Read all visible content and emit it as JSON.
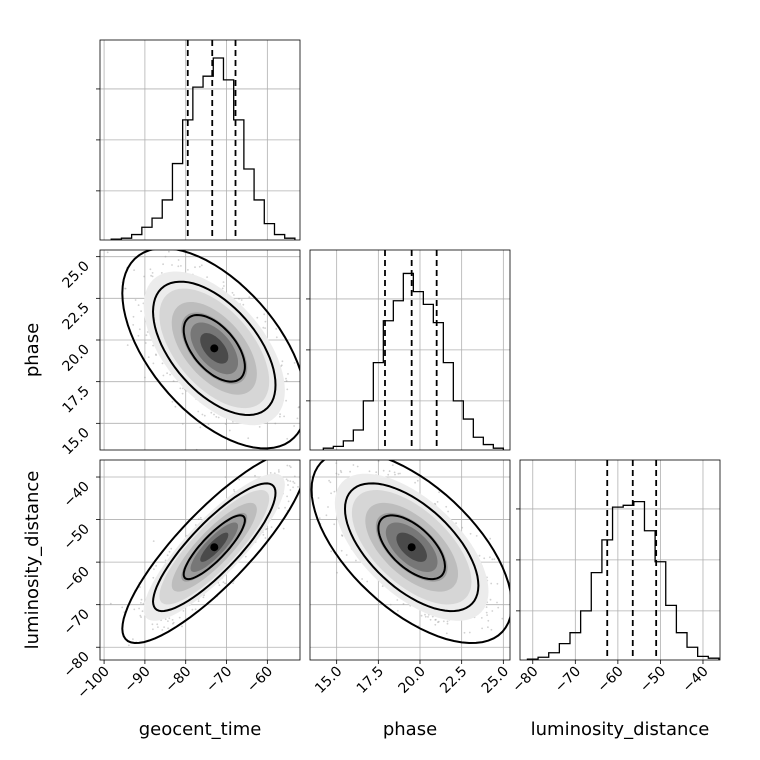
{
  "chart_data": {
    "type": "corner",
    "parameters": [
      "geocent_time",
      "phase",
      "luminosity_distance"
    ],
    "axis_labels": {
      "geocent_time": "geocent_time",
      "phase": "phase",
      "luminosity_distance": "luminosity_distance"
    },
    "ranges": {
      "geocent_time": [
        -101,
        -52
      ],
      "phase": [
        13.4,
        25.4
      ],
      "luminosity_distance": [
        -83,
        -36
      ]
    },
    "ticks": {
      "geocent_time": [
        -100,
        -90,
        -80,
        -70,
        -60
      ],
      "phase": [
        15.0,
        17.5,
        20.0,
        22.5,
        25.0
      ],
      "luminosity_distance": [
        -80,
        -70,
        -60,
        -50,
        -40
      ]
    },
    "tick_labels": {
      "geocent_time": [
        "−100",
        "−90",
        "−80",
        "−70",
        "−60"
      ],
      "phase": [
        "15.0",
        "17.5",
        "20.0",
        "22.5",
        "25.0"
      ],
      "luminosity_distance": [
        "−80",
        "−70",
        "−60",
        "−50",
        "−40"
      ]
    },
    "quantiles": {
      "geocent_time": [
        -79.5,
        -73.5,
        -67.8
      ],
      "phase": [
        17.9,
        19.5,
        21.0
      ],
      "luminosity_distance": [
        -62.5,
        -56.5,
        -51
      ]
    },
    "histograms": {
      "geocent_time": {
        "bins": [
          -97,
          -94.5,
          -92,
          -89.5,
          -87,
          -84.5,
          -82,
          -79.5,
          -77,
          -74.5,
          -72,
          -69.5,
          -67,
          -64.5,
          -62,
          -59.5,
          -57,
          -54.5
        ],
        "counts": [
          0.005,
          0.01,
          0.03,
          0.07,
          0.12,
          0.22,
          0.42,
          0.66,
          0.84,
          0.9,
          1.0,
          0.88,
          0.66,
          0.39,
          0.22,
          0.09,
          0.03,
          0.01
        ]
      },
      "phase": {
        "bins": [
          14.5,
          15.1,
          15.7,
          16.3,
          16.9,
          17.5,
          18.1,
          18.7,
          19.3,
          19.9,
          20.5,
          21.1,
          21.7,
          22.3,
          22.9,
          23.5,
          24.1,
          24.7
        ],
        "counts": [
          0.01,
          0.02,
          0.05,
          0.11,
          0.27,
          0.48,
          0.71,
          0.82,
          0.97,
          0.87,
          0.8,
          0.7,
          0.48,
          0.27,
          0.17,
          0.07,
          0.03,
          0.01
        ]
      },
      "luminosity_distance": {
        "bins": [
          -80,
          -77.5,
          -75,
          -72.5,
          -70,
          -67.5,
          -65,
          -62.5,
          -60,
          -57.5,
          -55,
          -52.5,
          -50,
          -47.5,
          -45,
          -42.5,
          -40,
          -37.5
        ],
        "counts": [
          0.005,
          0.015,
          0.04,
          0.09,
          0.15,
          0.27,
          0.48,
          0.66,
          0.84,
          0.85,
          0.87,
          0.71,
          0.54,
          0.3,
          0.15,
          0.07,
          0.02,
          0.01
        ]
      }
    },
    "joint": [
      {
        "x": "geocent_time",
        "y": "phase",
        "mean": [
          -73,
          19.5
        ],
        "sd": [
          7.5,
          2.0
        ],
        "rho": -0.55,
        "contours": [
          0.393,
          0.865,
          0.989
        ]
      },
      {
        "x": "geocent_time",
        "y": "luminosity_distance",
        "mean": [
          -73,
          -56.5
        ],
        "sd": [
          7.5,
          7.5
        ],
        "rho": 0.85,
        "contours": [
          0.393,
          0.865,
          0.989
        ]
      },
      {
        "x": "phase",
        "y": "luminosity_distance",
        "mean": [
          19.5,
          -56.5
        ],
        "sd": [
          2.0,
          7.5
        ],
        "rho": -0.6,
        "contours": [
          0.393,
          0.865,
          0.989
        ]
      }
    ],
    "grid": true
  }
}
